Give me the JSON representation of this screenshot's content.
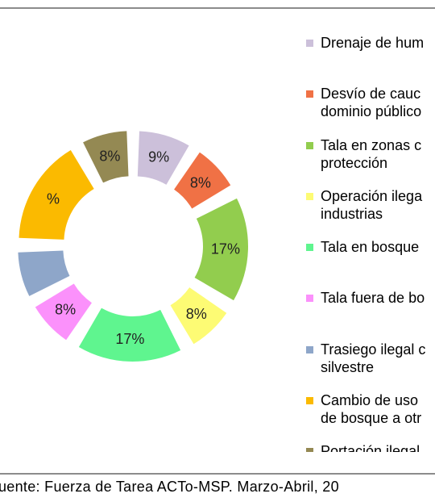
{
  "chart_data": {
    "type": "pie",
    "variant": "exploded-doughnut",
    "start_offset_deg": 0,
    "slices": [
      {
        "label": "Drenaje de hum",
        "value": 9,
        "value_label": "9%",
        "color": "#ccc0da"
      },
      {
        "label": "Desvío de cauc\ndominio público",
        "value": 8,
        "value_label": "8%",
        "color": "#f07145"
      },
      {
        "label": "Tala en zonas c\nprotección",
        "value": 17,
        "value_label": "17%",
        "color": "#92cd4e"
      },
      {
        "label": "Operación ilega\nindustrias",
        "value": 8,
        "value_label": "8%",
        "color": "#fdfb74"
      },
      {
        "label": "Tala en bosque",
        "value": 17,
        "value_label": "17%",
        "color": "#5ff58f"
      },
      {
        "label": "Tala fuera de bo",
        "value": 8,
        "value_label": "8%",
        "color": "#fb91fb"
      },
      {
        "label": "Trasiego ilegal c\nsilvestre",
        "value": 8,
        "value_label": "",
        "color": "#8ea6c9"
      },
      {
        "label": "Cambio de uso\nde bosque a otr",
        "value": 17,
        "value_label": "%",
        "color": "#fbba00"
      },
      {
        "label": "Portación ilegal",
        "value": 8,
        "value_label": "8%",
        "color": "#948953"
      }
    ],
    "legend_position": "right"
  },
  "source_note": "uente: Fuerza de Tarea ACTo-MSP. Marzo-Abril, 20"
}
